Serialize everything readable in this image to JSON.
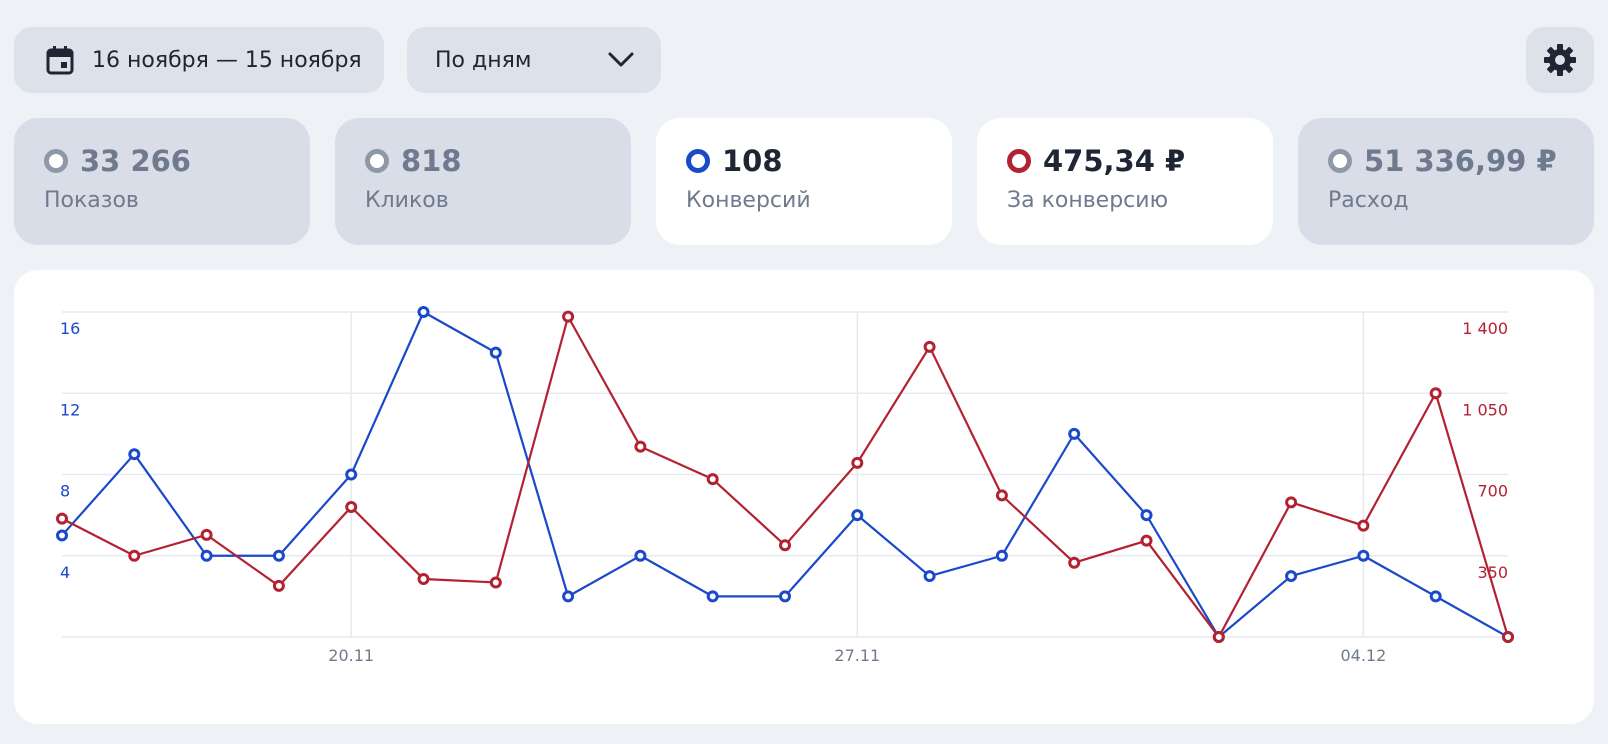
{
  "toolbar": {
    "date_range": "16 ноября — 15 ноября",
    "grouping": "По дням",
    "calendar_icon": "calendar-icon",
    "chevron_icon": "chevron-down-icon",
    "settings_icon": "gear-icon"
  },
  "metrics": [
    {
      "value": "33 266",
      "label": "Показов",
      "active": false,
      "color": "#8f98a8"
    },
    {
      "value": "818",
      "label": "Кликов",
      "active": false,
      "color": "#8f98a8"
    },
    {
      "value": "108",
      "label": "Конверсий",
      "active": true,
      "color": "#1a49c9"
    },
    {
      "value": "475,34 ₽",
      "label": "За конверсию",
      "active": true,
      "color": "#b22232"
    },
    {
      "value": "51 336,99 ₽",
      "label": "Расход",
      "active": false,
      "color": "#8f98a8"
    }
  ],
  "colors": {
    "blue": "#1a49c9",
    "red": "#b22232"
  },
  "chart_data": {
    "type": "line",
    "x_tick_labels": [
      "20.11",
      "27.11",
      "04.12"
    ],
    "x_tick_indices": [
      4,
      11,
      18
    ],
    "num_points": 21,
    "left_axis": {
      "ticks": [
        "16",
        "12",
        "8",
        "4"
      ],
      "tick_values": [
        16,
        12,
        8,
        4
      ],
      "ylim": [
        0,
        16
      ]
    },
    "right_axis": {
      "ticks": [
        "1 400",
        "1 050",
        "700",
        "350"
      ],
      "tick_values": [
        1400,
        1050,
        700,
        350
      ],
      "ylim": [
        0,
        1400
      ]
    },
    "series": [
      {
        "axis": "left",
        "color": "#1a49c9",
        "values": [
          5,
          9,
          4,
          4,
          8,
          16,
          14,
          2,
          4,
          2,
          2,
          6,
          3,
          4,
          10,
          6,
          0,
          3,
          4,
          2,
          0
        ]
      },
      {
        "axis": "right",
        "color": "#b22232",
        "values": [
          510,
          350,
          440,
          220,
          560,
          250,
          235,
          1380,
          820,
          680,
          395,
          750,
          1250,
          610,
          320,
          415,
          0,
          580,
          480,
          1050,
          0
        ]
      }
    ],
    "grid": true
  }
}
